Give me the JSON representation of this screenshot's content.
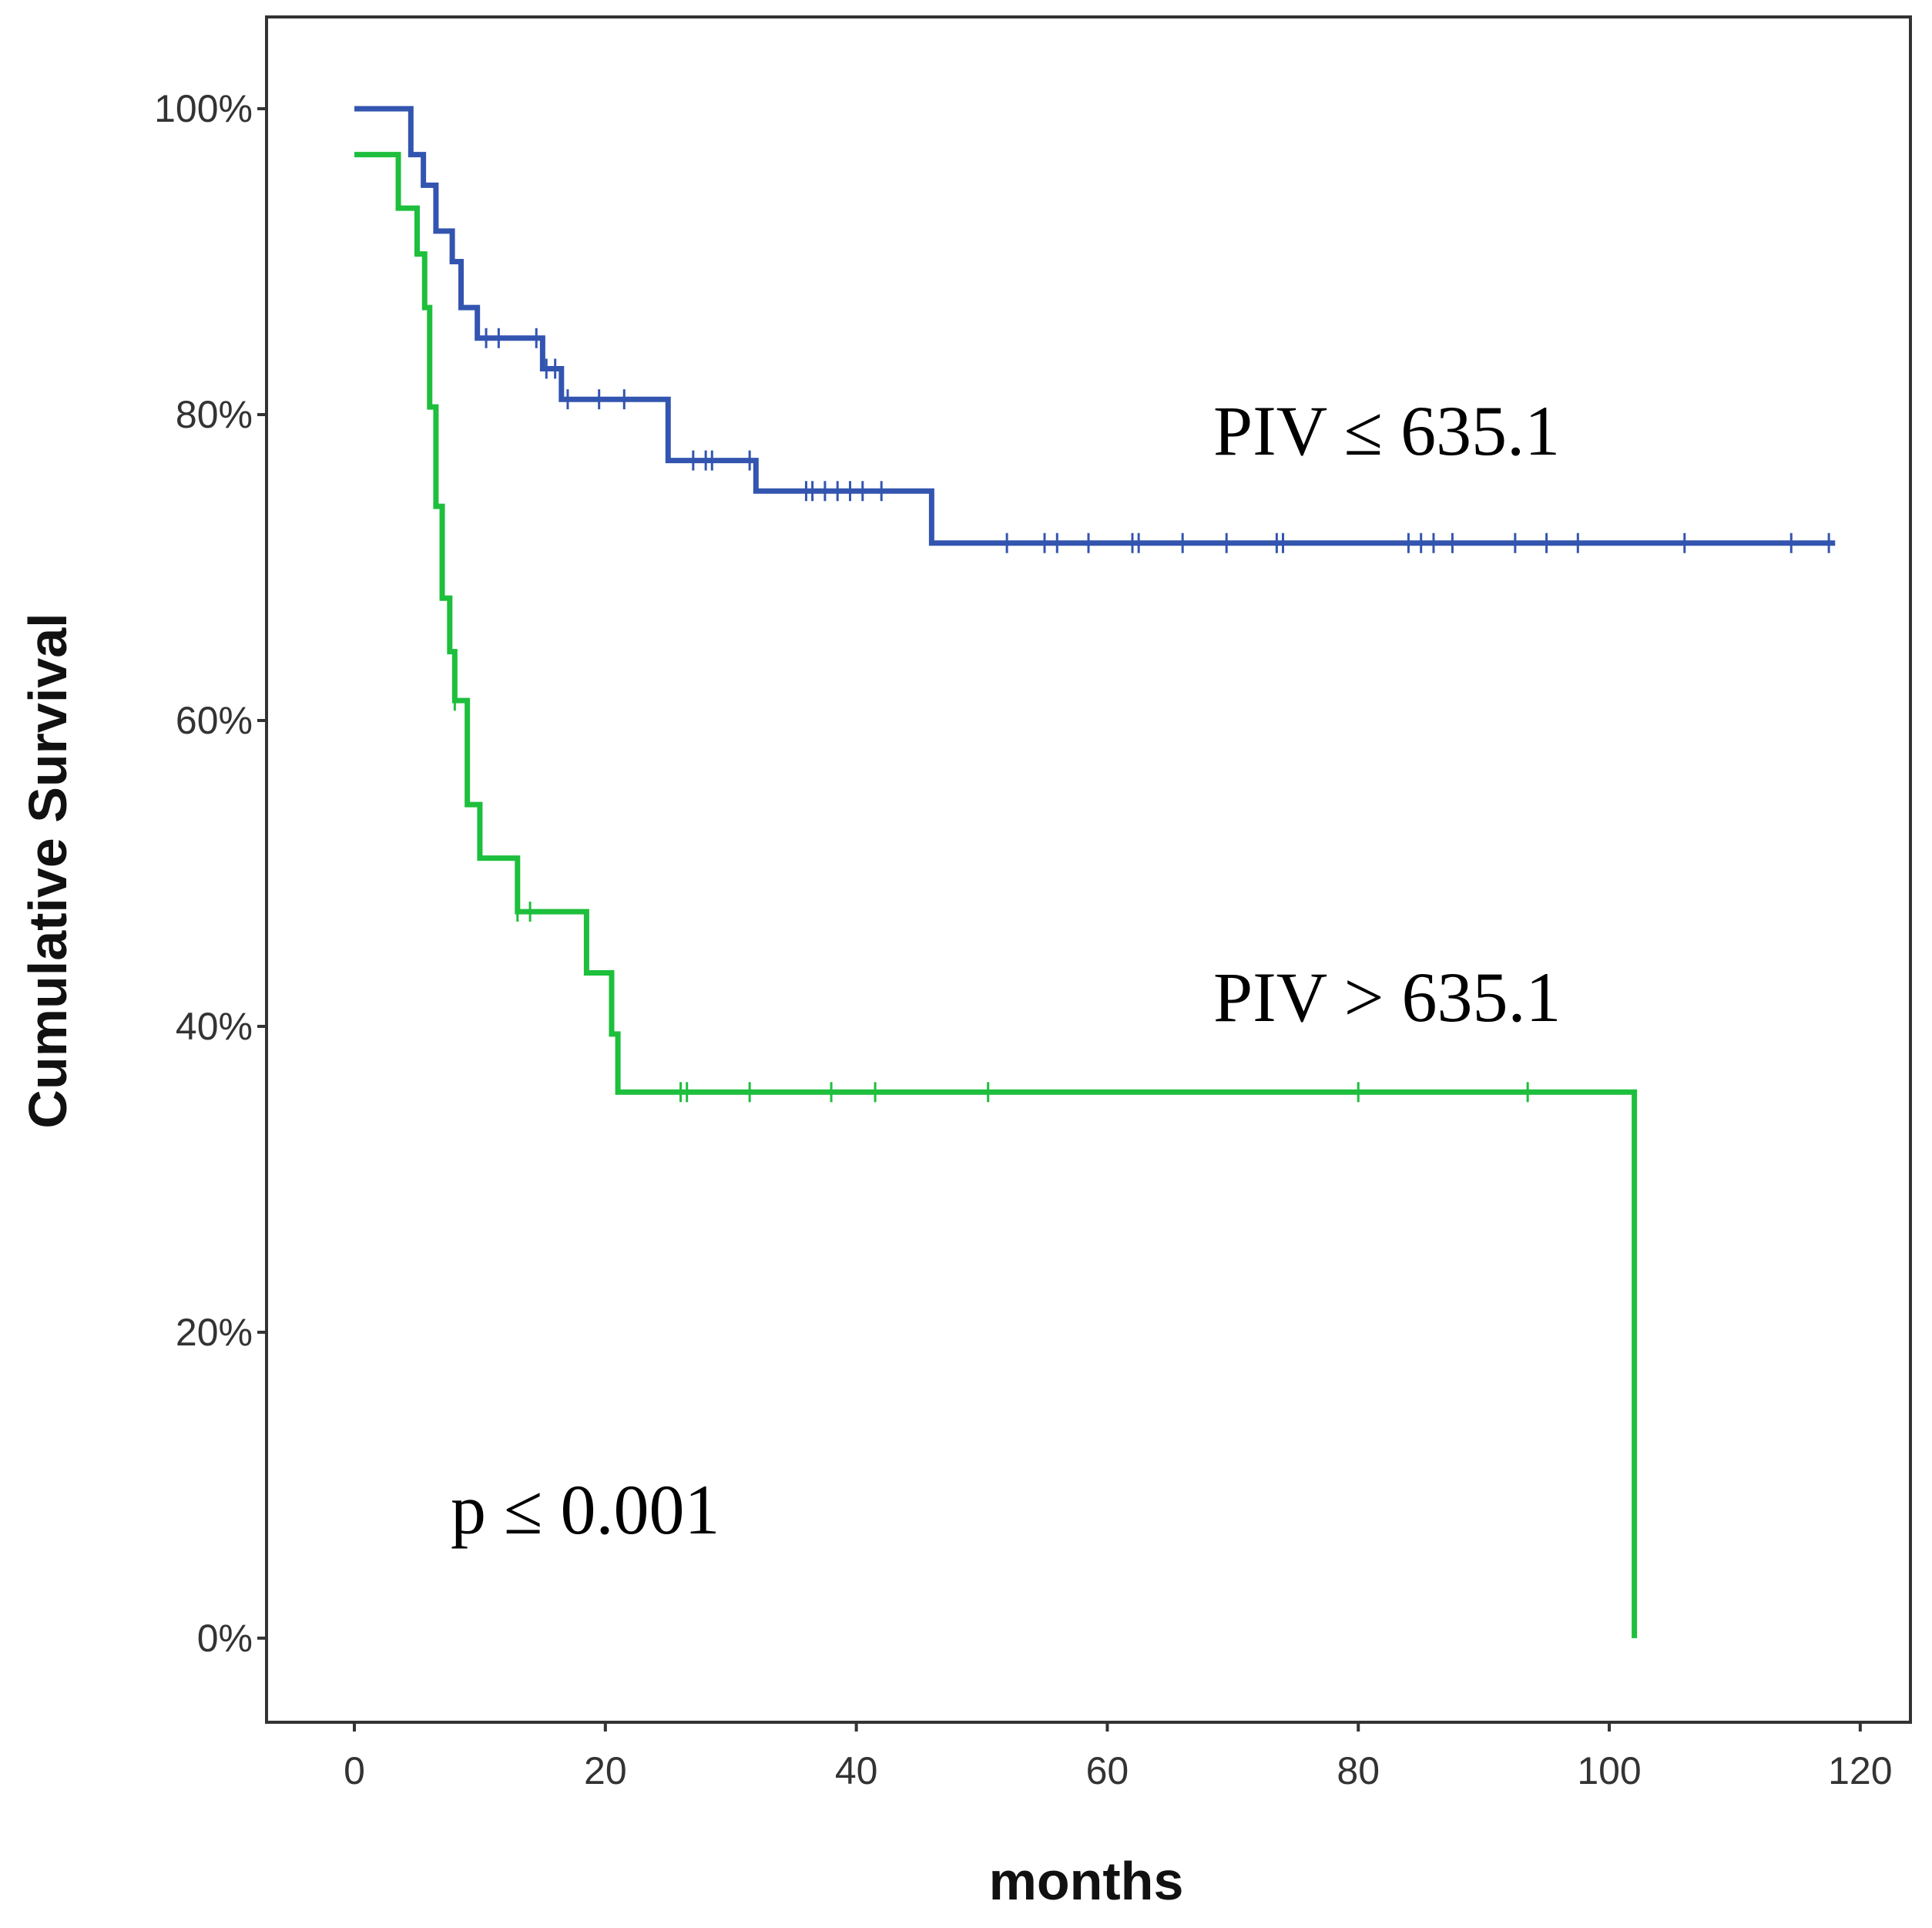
{
  "chart_data": {
    "type": "line",
    "subtype": "kaplan-meier",
    "title": "",
    "xlabel": "months",
    "ylabel": "Cumulative Survival",
    "xlim": [
      -7,
      124
    ],
    "ylim": [
      -5.5,
      106
    ],
    "x_ticks": [
      0,
      20,
      40,
      60,
      80,
      100,
      120
    ],
    "x_tick_labels": [
      "0",
      "20",
      "40",
      "60",
      "80",
      "100",
      "120"
    ],
    "y_ticks": [
      0,
      20,
      40,
      60,
      80,
      100
    ],
    "y_tick_labels": [
      "0%",
      "20%",
      "40%",
      "60%",
      "80%",
      "100%"
    ],
    "grid": false,
    "legend": "none",
    "series": [
      {
        "name": "PIV ≤ 635.1",
        "color": "#3355B0",
        "steps": [
          [
            0,
            100
          ],
          [
            4.5,
            97
          ],
          [
            5.5,
            95
          ],
          [
            6.5,
            92
          ],
          [
            7.8,
            90
          ],
          [
            8.5,
            87
          ],
          [
            9.8,
            85
          ],
          [
            15,
            83
          ],
          [
            16.5,
            81
          ],
          [
            25,
            77
          ],
          [
            32,
            75
          ],
          [
            46,
            71.6
          ],
          [
            118,
            71.6
          ]
        ],
        "censored": [
          10.5,
          11.5,
          14.5,
          15.3,
          16,
          17,
          19.5,
          21.5,
          27,
          28,
          28.5,
          31.5,
          36,
          36.5,
          37.5,
          38.5,
          39.5,
          40.5,
          42,
          52,
          55,
          56,
          58.5,
          62,
          62.5,
          66,
          69.5,
          73.5,
          74,
          84,
          85,
          86,
          87.5,
          92.5,
          95,
          97.5,
          106,
          114.5,
          117.5
        ]
      },
      {
        "name": "PIV > 635.1",
        "color": "#1DBF3C",
        "steps": [
          [
            0,
            97
          ],
          [
            3.5,
            93.5
          ],
          [
            5,
            90.5
          ],
          [
            5.6,
            87
          ],
          [
            6,
            80.5
          ],
          [
            6.5,
            74
          ],
          [
            7,
            68
          ],
          [
            7.6,
            64.5
          ],
          [
            8,
            61.3
          ],
          [
            9,
            54.5
          ],
          [
            10,
            51
          ],
          [
            13,
            47.5
          ],
          [
            18.5,
            43.5
          ],
          [
            20.5,
            39.5
          ],
          [
            21,
            35.7
          ],
          [
            102,
            35.7
          ],
          [
            102,
            0
          ]
        ],
        "censored": [
          8,
          13,
          14,
          26,
          26.5,
          31.5,
          38,
          41.5,
          50.5,
          80,
          93.5
        ]
      }
    ],
    "annotations": [
      {
        "text": "PIV ≤ 635.1"
      },
      {
        "text": "PIV > 635.1"
      },
      {
        "text": "p ≤ 0.001"
      }
    ]
  }
}
